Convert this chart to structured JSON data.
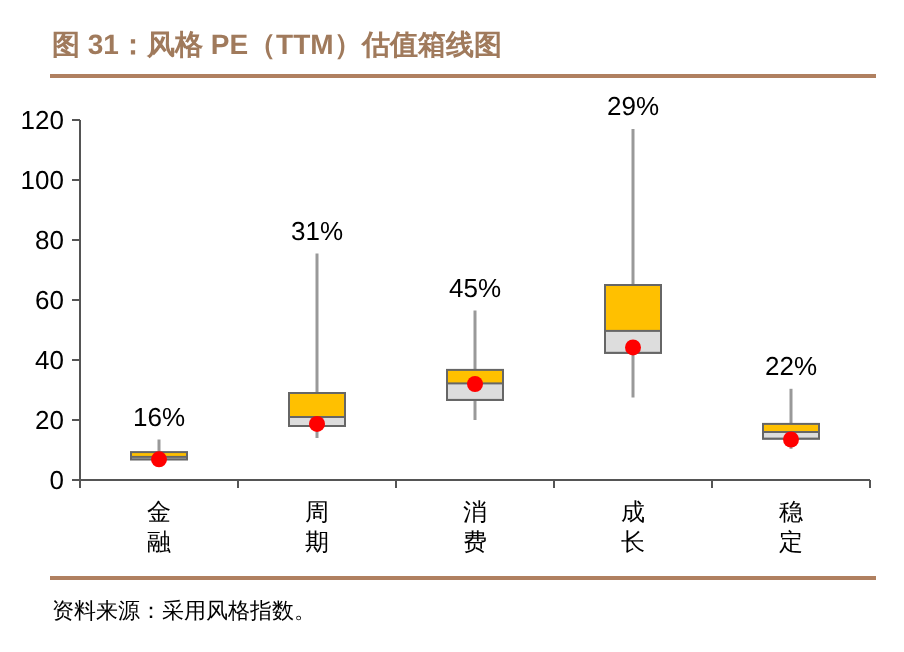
{
  "chart_data": {
    "type": "box",
    "title": "图 31：风格 PE（TTM）估值箱线图",
    "categories": [
      "金融",
      "周期",
      "消费",
      "成长",
      "稳定"
    ],
    "series": [
      {
        "color": "#ffc000",
        "boxes": [
          {
            "low": 6.5,
            "q1": 6.9,
            "median": 7.7,
            "q3": 9.3,
            "high": 13.5
          },
          {
            "low": 14,
            "q1": 18,
            "median": 21,
            "q3": 29,
            "high": 75.5
          },
          {
            "low": 20,
            "q1": 26.7,
            "median": 32.2,
            "q3": 36.7,
            "high": 56.5
          },
          {
            "low": 27.5,
            "q1": 42.4,
            "median": 49.7,
            "q3": 65,
            "high": 117
          },
          {
            "low": 10.4,
            "q1": 13.8,
            "median": 16,
            "q3": 18.7,
            "high": 30.4
          }
        ]
      },
      {
        "type": "scatter",
        "color": "#ff0000",
        "x": [
          "金融",
          "周期",
          "消费",
          "成长",
          "稳定"
        ],
        "values": [
          6.9,
          18.7,
          32,
          44.2,
          13.5
        ]
      }
    ],
    "ylim": [
      0,
      120
    ],
    "yticks": [
      0,
      20,
      40,
      60,
      80,
      100,
      120
    ],
    "grid": false,
    "marker": "circle",
    "annotations": [
      {
        "text": "16%",
        "x": "金融",
        "y": 13.5
      },
      {
        "text": "31%",
        "x": "周期",
        "y": 75.5
      },
      {
        "text": "45%",
        "x": "消费",
        "y": 56.5
      },
      {
        "text": "29%",
        "x": "成长",
        "y": 117
      },
      {
        "text": "22%",
        "x": "稳定",
        "y": 30.4
      },
      "资料来源：采用风格指数。"
    ]
  }
}
